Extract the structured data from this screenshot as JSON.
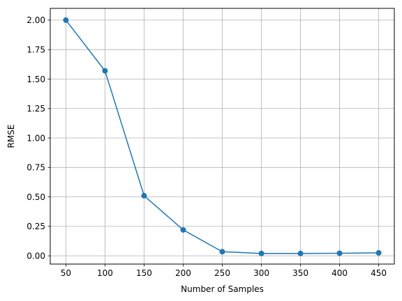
{
  "chart_data": {
    "type": "line",
    "title": "",
    "xlabel": "Number of Samples",
    "ylabel": "RMSE",
    "x": [
      50,
      100,
      150,
      200,
      250,
      300,
      350,
      400,
      450
    ],
    "series": [
      {
        "values": [
          2.0,
          1.57,
          0.51,
          0.22,
          0.035,
          0.02,
          0.02,
          0.022,
          0.025
        ],
        "color": "#1f77b4",
        "marker": "circle"
      }
    ],
    "xticks": [
      "50",
      "100",
      "150",
      "200",
      "250",
      "300",
      "350",
      "400",
      "450"
    ],
    "yticks": [
      "0.00",
      "0.25",
      "0.50",
      "0.75",
      "1.00",
      "1.25",
      "1.50",
      "1.75",
      "2.00"
    ],
    "xlim": [
      30,
      470
    ],
    "ylim": [
      -0.07,
      2.1
    ],
    "grid": true,
    "colors": {
      "grid": "#b0b0b0",
      "axis": "#000000"
    }
  }
}
